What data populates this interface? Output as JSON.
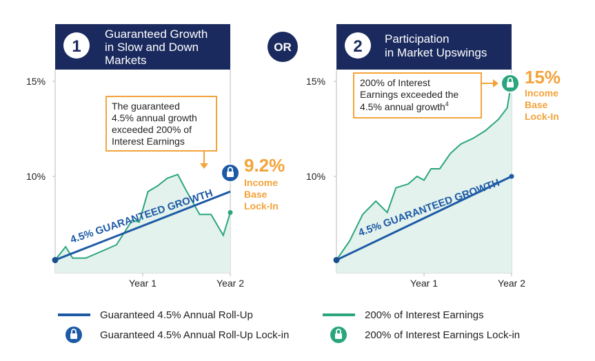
{
  "or_label": "OR",
  "panels": [
    {
      "number": "1",
      "title_lines": [
        "Guaranteed Growth",
        "in Slow and Down",
        "Markets"
      ],
      "callout_lines": [
        "The guaranteed",
        "4.5% annual growth",
        "exceeded 200% of",
        "Interest Earnings"
      ],
      "lockin_value": "9.2%",
      "lockin_lines": [
        "Income",
        "Base",
        "Lock-In"
      ],
      "guaranteed_label": "4.5% GUARANTEED GROWTH"
    },
    {
      "number": "2",
      "title_lines": [
        "Participation",
        "in Market Upswings"
      ],
      "callout_lines": [
        "200% of Interest",
        "Earnings exceeded the",
        "4.5% annual growth"
      ],
      "callout_superscript": "4",
      "lockin_value": "15%",
      "lockin_lines": [
        "Income",
        "Base",
        "Lock-In"
      ],
      "guaranteed_label": "4.5% GUARANTEED GROWTH"
    }
  ],
  "legend": {
    "items": [
      {
        "label": "Guaranteed 4.5% Annual Roll-Up",
        "icon": "blue-line"
      },
      {
        "label": "Guaranteed 4.5% Annual Roll-Up Lock-in",
        "icon": "blue-lock-icon"
      },
      {
        "label": "200% of Interest Earnings",
        "icon": "green-line"
      },
      {
        "label": "200% of Interest Earnings Lock-in",
        "icon": "green-lock-icon"
      }
    ]
  },
  "colors": {
    "navy": "#1a2a5e",
    "guaranteed_blue": "#1d5aa6",
    "earnings_green": "#2aa57e",
    "area_fill": "#e3f2ec",
    "accent_orange": "#f3a33a"
  },
  "chart_data": [
    {
      "type": "line",
      "x_ticks": [
        "Year 1",
        "Year 2"
      ],
      "y_ticks": [
        "15%",
        "10%"
      ],
      "ylim": [
        5.5,
        16
      ],
      "xlim": [
        0,
        2
      ],
      "series": [
        {
          "name": "Guaranteed 4.5% Annual Roll-Up",
          "x": [
            0,
            2
          ],
          "y": [
            5.6,
            9.2
          ]
        },
        {
          "name": "200% of Interest Earnings",
          "x": [
            0,
            0.12,
            0.2,
            0.35,
            0.7,
            0.88,
            0.96,
            1.06,
            1.17,
            1.28,
            1.4,
            1.48,
            1.65,
            1.78,
            1.92,
            2.0
          ],
          "y": [
            5.6,
            6.3,
            5.7,
            5.7,
            6.4,
            7.7,
            7.6,
            9.2,
            9.5,
            9.9,
            10.1,
            9.4,
            8.0,
            8.0,
            6.9,
            8.1
          ]
        }
      ]
    },
    {
      "type": "line",
      "x_ticks": [
        "Year 1",
        "Year 2"
      ],
      "y_ticks": [
        "15%",
        "10%"
      ],
      "ylim": [
        5.5,
        16
      ],
      "xlim": [
        0,
        2
      ],
      "series": [
        {
          "name": "Guaranteed 4.5% Annual Roll-Up",
          "x": [
            0,
            2
          ],
          "y": [
            5.6,
            10.0
          ]
        },
        {
          "name": "200% of Interest Earnings",
          "x": [
            0,
            0.15,
            0.3,
            0.45,
            0.58,
            0.68,
            0.82,
            0.92,
            1.0,
            1.08,
            1.18,
            1.3,
            1.42,
            1.56,
            1.7,
            1.85,
            1.95,
            2.0
          ],
          "y": [
            5.6,
            6.6,
            8.0,
            8.7,
            8.1,
            9.4,
            9.6,
            10.0,
            9.8,
            10.4,
            10.4,
            11.2,
            11.7,
            12.0,
            12.4,
            13.0,
            13.6,
            15.0
          ]
        }
      ]
    }
  ]
}
